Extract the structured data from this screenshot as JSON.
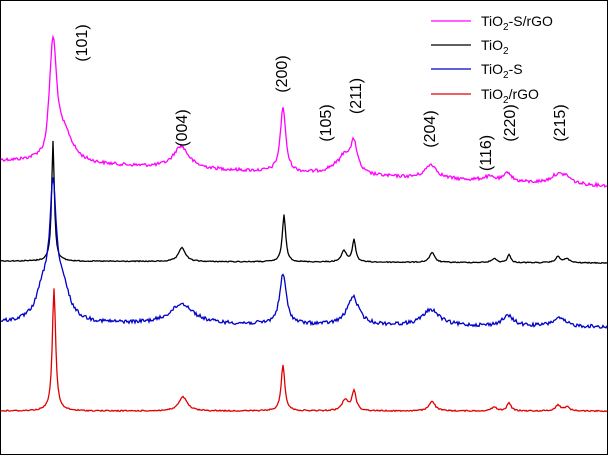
{
  "chart_data": {
    "type": "line",
    "title": "",
    "xlabel": "",
    "ylabel": "",
    "grid": false,
    "legend_placement": "top-right",
    "legend": [
      {
        "label_main": "TiO",
        "label_sub": "2",
        "label_tail": "-S/rGO",
        "series_ref": 0
      },
      {
        "label_main": "TiO",
        "label_sub": "2",
        "label_tail": "",
        "series_ref": 1
      },
      {
        "label_main": "TiO",
        "label_sub": "2",
        "label_tail": "-S",
        "series_ref": 2
      },
      {
        "label_main": "TiO",
        "label_sub": "2",
        "label_tail": "/rGO",
        "series_ref": 3
      }
    ],
    "peak_labels": [
      "(101)",
      "(004)",
      "(200)",
      "(105)",
      "(211)",
      "(204)",
      "(116)",
      "(220)",
      "(215)"
    ],
    "series": [
      {
        "name": "TiO2-S/rGO",
        "color": "#ff00ff"
      },
      {
        "name": "TiO2",
        "color": "#000000"
      },
      {
        "name": "TiO2-S",
        "color": "#0000c8"
      },
      {
        "name": "TiO2/rGO",
        "color": "#e00000"
      }
    ]
  }
}
